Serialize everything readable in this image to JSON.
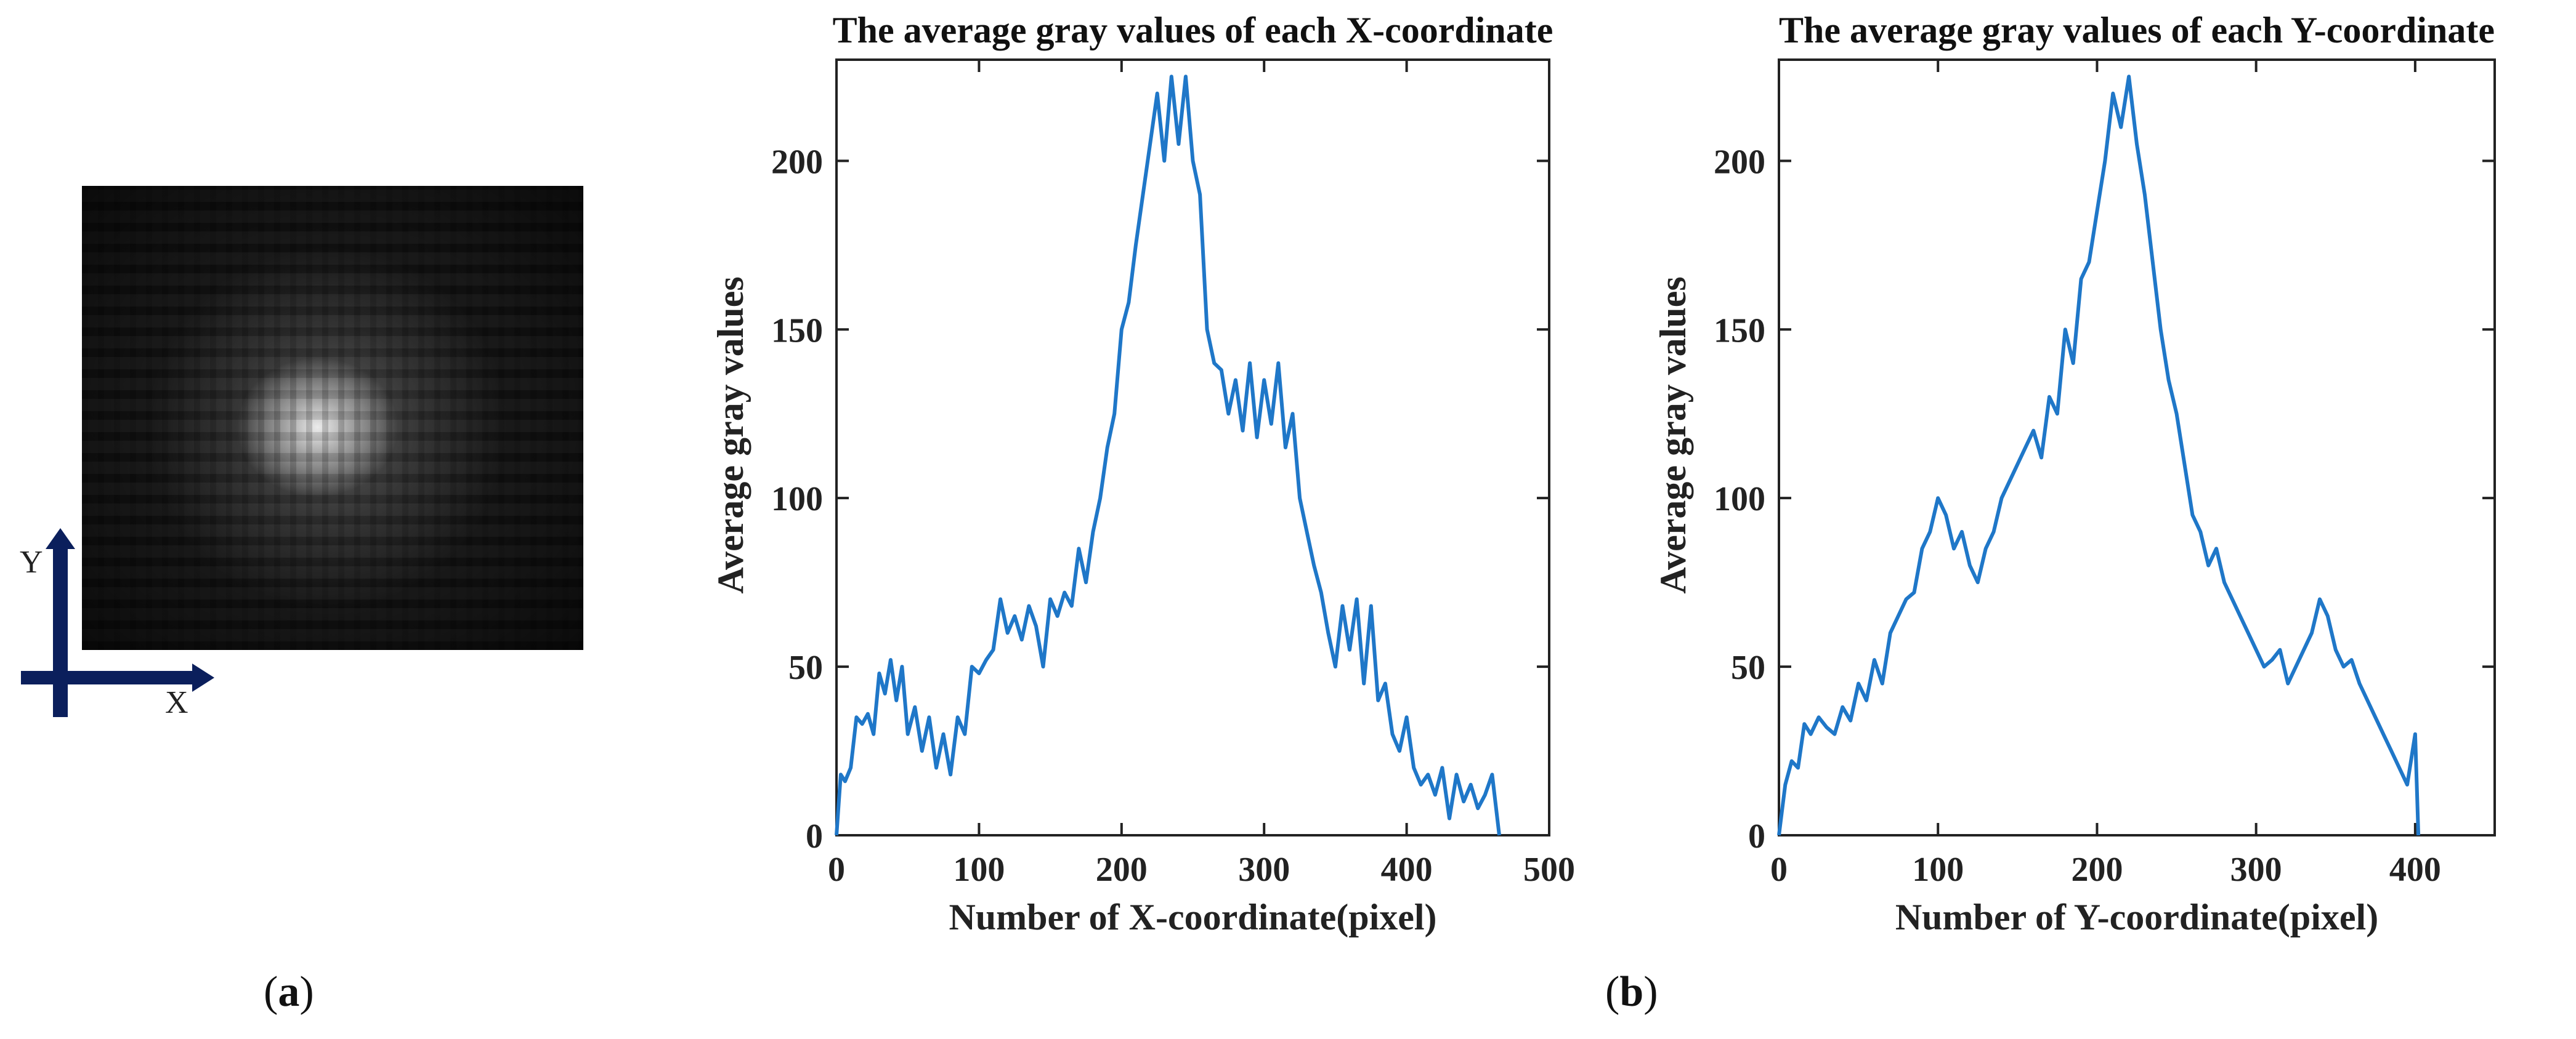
{
  "panels": {
    "a_label_open": "(",
    "a_label_letter": "a",
    "a_label_close": ")",
    "b_label_open": "(",
    "b_label_letter": "b",
    "b_label_close": ")"
  },
  "image_axes": {
    "x_label": "X",
    "y_label": "Y",
    "arrow_color": "#0b1f5c"
  },
  "colors": {
    "line": "#1f77c8",
    "axis": "#222222"
  },
  "chart_data": [
    {
      "type": "line",
      "title": "The average gray values of each X-coordinate",
      "xlabel": "Number of X-coordinate(pixel)",
      "ylabel": "Average gray values",
      "xlim": [
        0,
        500
      ],
      "ylim": [
        0,
        230
      ],
      "xticks": [
        0,
        100,
        200,
        300,
        400,
        500
      ],
      "yticks": [
        0,
        50,
        100,
        150,
        200
      ],
      "grid": false,
      "series": [
        {
          "x": [
            0,
            3,
            6,
            10,
            14,
            18,
            22,
            26,
            30,
            34,
            38,
            42,
            46,
            50,
            55,
            60,
            65,
            70,
            75,
            80,
            85,
            90,
            95,
            100,
            105,
            110,
            115,
            120,
            125,
            130,
            135,
            140,
            145,
            150,
            155,
            160,
            165,
            170,
            175,
            180,
            185,
            190,
            195,
            200,
            205,
            210,
            215,
            220,
            225,
            230,
            235,
            240,
            245,
            250,
            255,
            260,
            265,
            270,
            275,
            280,
            285,
            290,
            295,
            300,
            305,
            310,
            315,
            320,
            325,
            330,
            335,
            340,
            345,
            350,
            355,
            360,
            365,
            370,
            375,
            380,
            385,
            390,
            395,
            400,
            405,
            410,
            415,
            420,
            425,
            430,
            435,
            440,
            445,
            450,
            455,
            460,
            465
          ],
          "y": [
            0,
            18,
            16,
            20,
            35,
            33,
            36,
            30,
            48,
            42,
            52,
            40,
            50,
            30,
            38,
            25,
            35,
            20,
            30,
            18,
            35,
            30,
            50,
            48,
            52,
            55,
            70,
            60,
            65,
            58,
            68,
            62,
            50,
            70,
            65,
            72,
            68,
            85,
            75,
            90,
            100,
            115,
            125,
            150,
            158,
            175,
            190,
            205,
            220,
            200,
            225,
            205,
            225,
            200,
            190,
            150,
            140,
            138,
            125,
            135,
            120,
            140,
            118,
            135,
            122,
            140,
            115,
            125,
            100,
            90,
            80,
            72,
            60,
            50,
            68,
            55,
            70,
            45,
            68,
            40,
            45,
            30,
            25,
            35,
            20,
            15,
            18,
            12,
            20,
            5,
            18,
            10,
            15,
            8,
            12,
            18,
            0
          ]
        }
      ]
    },
    {
      "type": "line",
      "title": "The average gray values of each Y-coordinate",
      "xlabel": "Number of Y-coordinate(pixel)",
      "ylabel": "Average gray values",
      "xlim": [
        0,
        450
      ],
      "ylim": [
        0,
        230
      ],
      "xticks": [
        0,
        100,
        200,
        300,
        400
      ],
      "yticks": [
        0,
        50,
        100,
        150,
        200
      ],
      "grid": false,
      "series": [
        {
          "x": [
            0,
            4,
            8,
            12,
            16,
            20,
            25,
            30,
            35,
            40,
            45,
            50,
            55,
            60,
            65,
            70,
            75,
            80,
            85,
            90,
            95,
            100,
            105,
            110,
            115,
            120,
            125,
            130,
            135,
            140,
            145,
            150,
            155,
            160,
            165,
            170,
            175,
            180,
            185,
            190,
            195,
            200,
            205,
            210,
            215,
            220,
            225,
            230,
            235,
            240,
            245,
            250,
            255,
            260,
            265,
            270,
            275,
            280,
            285,
            290,
            295,
            300,
            305,
            310,
            315,
            320,
            325,
            330,
            335,
            340,
            345,
            350,
            355,
            360,
            365,
            370,
            375,
            380,
            385,
            390,
            395,
            400,
            402
          ],
          "y": [
            0,
            15,
            22,
            20,
            33,
            30,
            35,
            32,
            30,
            38,
            34,
            45,
            40,
            52,
            45,
            60,
            65,
            70,
            72,
            85,
            90,
            100,
            95,
            85,
            90,
            80,
            75,
            85,
            90,
            100,
            105,
            110,
            115,
            120,
            112,
            130,
            125,
            150,
            140,
            165,
            170,
            185,
            200,
            220,
            210,
            225,
            205,
            190,
            170,
            150,
            135,
            125,
            110,
            95,
            90,
            80,
            85,
            75,
            70,
            65,
            60,
            55,
            50,
            52,
            55,
            45,
            50,
            55,
            60,
            70,
            65,
            55,
            50,
            52,
            45,
            40,
            35,
            30,
            25,
            20,
            15,
            30,
            0
          ]
        }
      ]
    }
  ]
}
